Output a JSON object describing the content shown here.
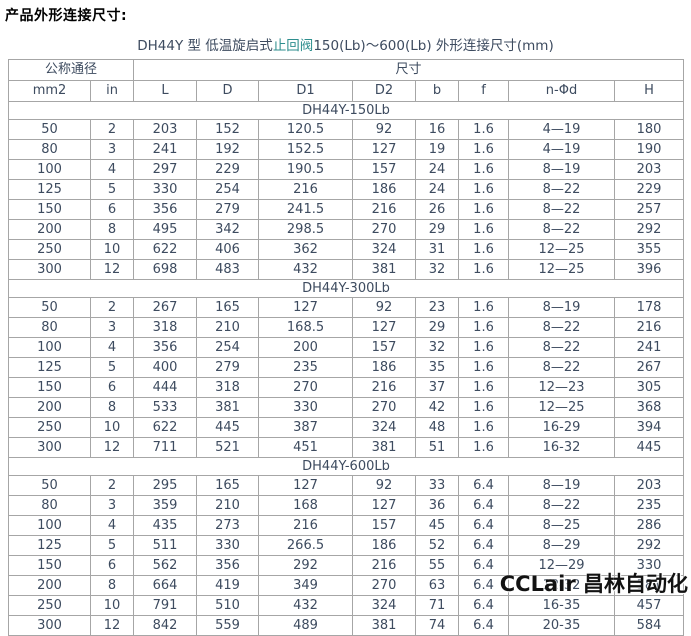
{
  "page": {
    "title": "产品外形连接尺寸:"
  },
  "subtitle": {
    "prefix": "DH44Y 型 低温旋启式",
    "link": "止回阀",
    "suffix": "150(Lb)～600(Lb) 外形连接尺寸(mm)"
  },
  "colors": {
    "link_teal": "#2e8e8e",
    "border_gray": "#a6a6a6",
    "text": "#3d4b5f",
    "watermark": "#121212"
  },
  "table": {
    "group_headers": [
      {
        "label": "公称通径",
        "colspan": 2
      },
      {
        "label": "尺寸",
        "colspan": 8
      }
    ],
    "columns": [
      "mm2",
      "in",
      "L",
      "D",
      "D1",
      "D2",
      "b",
      "f",
      "n-Φd",
      "H"
    ],
    "sections": [
      {
        "label": "DH44Y-150Lb",
        "rows": [
          [
            "50",
            "2",
            "203",
            "152",
            "120.5",
            "92",
            "16",
            "1.6",
            "4—19",
            "180"
          ],
          [
            "80",
            "3",
            "241",
            "192",
            "152.5",
            "127",
            "19",
            "1.6",
            "4—19",
            "190"
          ],
          [
            "100",
            "4",
            "297",
            "229",
            "190.5",
            "157",
            "24",
            "1.6",
            "8—19",
            "203"
          ],
          [
            "125",
            "5",
            "330",
            "254",
            "216",
            "186",
            "24",
            "1.6",
            "8—22",
            "229"
          ],
          [
            "150",
            "6",
            "356",
            "279",
            "241.5",
            "216",
            "26",
            "1.6",
            "8—22",
            "257"
          ],
          [
            "200",
            "8",
            "495",
            "342",
            "298.5",
            "270",
            "29",
            "1.6",
            "8—22",
            "292"
          ],
          [
            "250",
            "10",
            "622",
            "406",
            "362",
            "324",
            "31",
            "1.6",
            "12—25",
            "355"
          ],
          [
            "300",
            "12",
            "698",
            "483",
            "432",
            "381",
            "32",
            "1.6",
            "12—25",
            "396"
          ]
        ]
      },
      {
        "label": "DH44Y-300Lb",
        "rows": [
          [
            "50",
            "2",
            "267",
            "165",
            "127",
            "92",
            "23",
            "1.6",
            "8—19",
            "178"
          ],
          [
            "80",
            "3",
            "318",
            "210",
            "168.5",
            "127",
            "29",
            "1.6",
            "8—22",
            "216"
          ],
          [
            "100",
            "4",
            "356",
            "254",
            "200",
            "157",
            "32",
            "1.6",
            "8—22",
            "241"
          ],
          [
            "125",
            "5",
            "400",
            "279",
            "235",
            "186",
            "35",
            "1.6",
            "8—22",
            "267"
          ],
          [
            "150",
            "6",
            "444",
            "318",
            "270",
            "216",
            "37",
            "1.6",
            "12—23",
            "305"
          ],
          [
            "200",
            "8",
            "533",
            "381",
            "330",
            "270",
            "42",
            "1.6",
            "12—25",
            "368"
          ],
          [
            "250",
            "10",
            "622",
            "445",
            "387",
            "324",
            "48",
            "1.6",
            "16-29",
            "394"
          ],
          [
            "300",
            "12",
            "711",
            "521",
            "451",
            "381",
            "51",
            "1.6",
            "16-32",
            "445"
          ]
        ]
      },
      {
        "label": "DH44Y-600Lb",
        "rows": [
          [
            "50",
            "2",
            "295",
            "165",
            "127",
            "92",
            "33",
            "6.4",
            "8—19",
            "203"
          ],
          [
            "80",
            "3",
            "359",
            "210",
            "168",
            "127",
            "36",
            "6.4",
            "8—22",
            "235"
          ],
          [
            "100",
            "4",
            "435",
            "273",
            "216",
            "157",
            "45",
            "6.4",
            "8—25",
            "286"
          ],
          [
            "125",
            "5",
            "511",
            "330",
            "266.5",
            "186",
            "52",
            "6.4",
            "8—29",
            "292"
          ],
          [
            "150",
            "6",
            "562",
            "356",
            "292",
            "216",
            "55",
            "6.4",
            "12—29",
            "330"
          ],
          [
            "200",
            "8",
            "664",
            "419",
            "349",
            "270",
            "63",
            "6.4",
            "12-32",
            "381"
          ],
          [
            "250",
            "10",
            "791",
            "510",
            "432",
            "324",
            "71",
            "6.4",
            "16-35",
            "457"
          ],
          [
            "300",
            "12",
            "842",
            "559",
            "489",
            "381",
            "74",
            "6.4",
            "20-35",
            "584"
          ]
        ]
      }
    ]
  },
  "watermark": "CCLair 昌林自动化"
}
